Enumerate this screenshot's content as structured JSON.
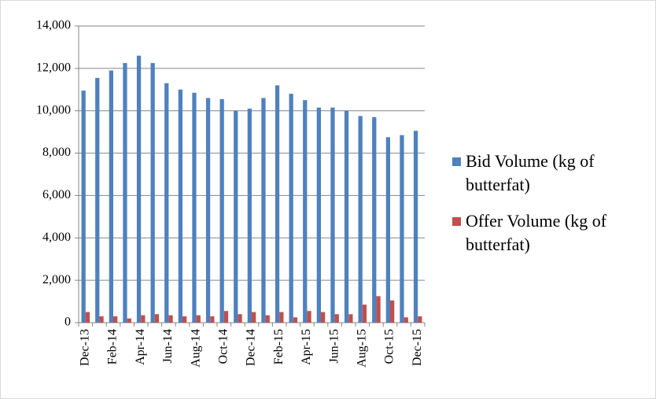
{
  "chart_data": {
    "type": "bar",
    "categories": [
      "Dec-13",
      null,
      "Feb-14",
      null,
      "Apr-14",
      null,
      "Jun-14",
      null,
      "Aug-14",
      null,
      "Oct-14",
      null,
      "Dec-14",
      null,
      "Feb-15",
      null,
      "Apr-15",
      null,
      "Jun-15",
      null,
      "Aug-15",
      null,
      "Oct-15",
      null,
      "Dec-15"
    ],
    "series": [
      {
        "name": "Bid Volume (kg of butterfat)",
        "color": "#4f81bd",
        "values": [
          10950,
          11550,
          11900,
          12250,
          12600,
          12250,
          11300,
          11000,
          10850,
          10600,
          10550,
          10000,
          10100,
          10600,
          11200,
          10800,
          10500,
          10150,
          10150,
          10000,
          9750,
          9700,
          8750,
          8850,
          9050
        ]
      },
      {
        "name": "Offer Volume (kg of butterfat)",
        "color": "#c0504d",
        "values": [
          500,
          300,
          300,
          200,
          350,
          400,
          350,
          300,
          350,
          300,
          550,
          400,
          500,
          350,
          500,
          250,
          550,
          500,
          400,
          400,
          850,
          1250,
          1050,
          250,
          300
        ]
      }
    ],
    "ylim": [
      0,
      14000
    ],
    "yticks": [
      0,
      {
        "value": 2000,
        "label": "2,000"
      },
      {
        "value": 4000,
        "label": "4,000"
      },
      {
        "value": 6000,
        "label": "6,000"
      },
      {
        "value": 8000,
        "label": "8,000"
      },
      {
        "value": 10000,
        "label": "10,000"
      },
      {
        "value": 12000,
        "label": "12,000"
      },
      {
        "value": 14000,
        "label": "14,000"
      }
    ],
    "grid": true,
    "legend": "right"
  }
}
